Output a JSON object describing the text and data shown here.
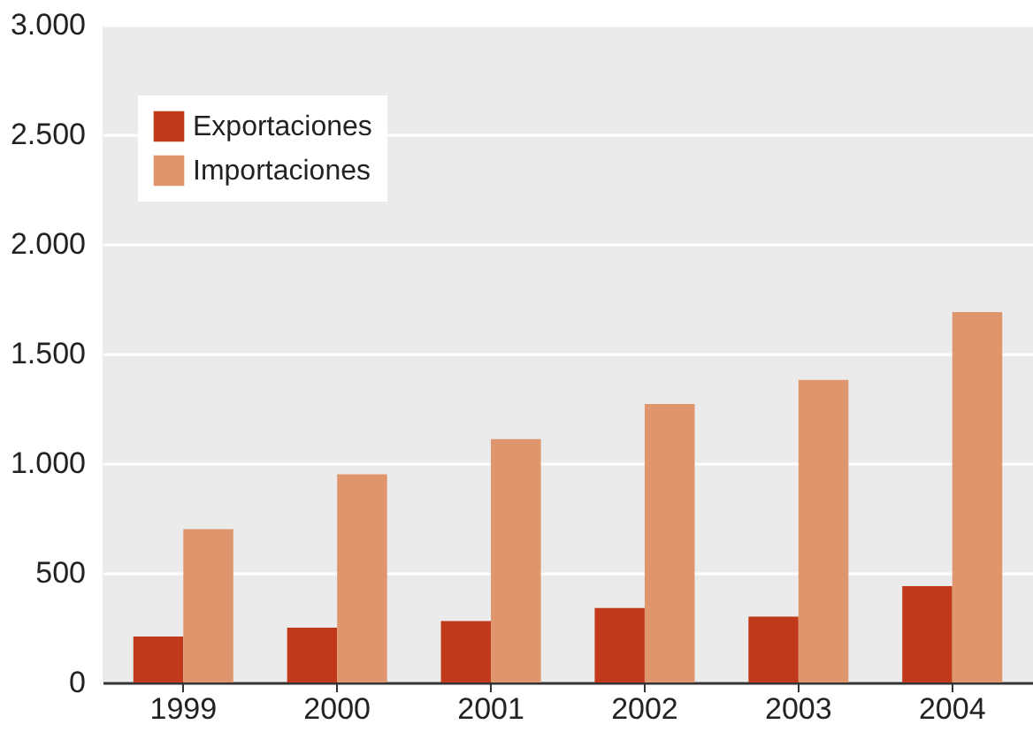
{
  "chart_data": {
    "type": "bar",
    "categories": [
      "1999",
      "2000",
      "2001",
      "2002",
      "2003",
      "2004"
    ],
    "series": [
      {
        "name": "Exportaciones",
        "color": "#c0391b",
        "values": [
          210,
          250,
          280,
          340,
          300,
          440
        ]
      },
      {
        "name": "Importaciones",
        "color": "#e0966c",
        "values": [
          700,
          950,
          1110,
          1270,
          1380,
          1690
        ]
      }
    ],
    "ylim": [
      0,
      3000
    ],
    "yticks": [
      {
        "value": 0,
        "label": "0"
      },
      {
        "value": 500,
        "label": "500"
      },
      {
        "value": 1000,
        "label": "1.000"
      },
      {
        "value": 1500,
        "label": "1.500"
      },
      {
        "value": 2000,
        "label": "2.000"
      },
      {
        "value": 2500,
        "label": "2.500"
      },
      {
        "value": 3000,
        "label": "3.000"
      }
    ],
    "grid": "y",
    "legend": "top left"
  }
}
